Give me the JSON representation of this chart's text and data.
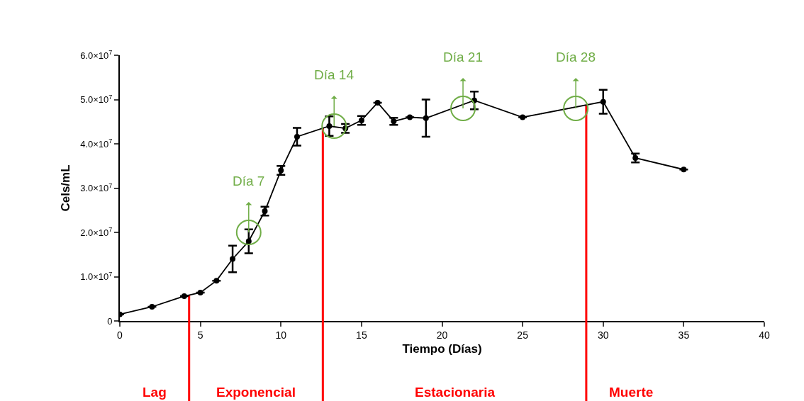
{
  "chart_data": {
    "type": "line",
    "xlabel": "Tiempo (Días)",
    "ylabel": "Cels/mL",
    "x": [
      0,
      2,
      4,
      5,
      6,
      7,
      8,
      9,
      10,
      11,
      13,
      14,
      15,
      16,
      17,
      18,
      19,
      22,
      25,
      30,
      32,
      35
    ],
    "series": [
      {
        "color": "#000000",
        "values": [
          1500000,
          3200000,
          5600000,
          6400000,
          9100000,
          14000000,
          18000000,
          24800000,
          34000000,
          41600000,
          44000000,
          43500000,
          45300000,
          49300000,
          45100000,
          46000000,
          45800000,
          49800000,
          46000000,
          49500000,
          36800000,
          34200000
        ],
        "errors": [
          null,
          null,
          null,
          null,
          null,
          3000000,
          2700000,
          1000000,
          1000000,
          2000000,
          2200000,
          1000000,
          1000000,
          null,
          800000,
          null,
          4200000,
          2000000,
          null,
          2700000,
          1000000,
          null
        ]
      }
    ],
    "marker": "circle",
    "line_style": "solid",
    "grid": false,
    "xlim": [
      0,
      40
    ],
    "xticks": [
      0,
      5,
      10,
      15,
      20,
      25,
      30,
      35,
      40
    ],
    "ylim": [
      0,
      60000000
    ],
    "yticks": [
      0,
      {
        "value": 10000000,
        "label": "1.0×10$^{7}$"
      },
      {
        "value": 20000000,
        "label": "2.0×10$^{7}$"
      },
      {
        "value": 30000000,
        "label": "3.0×10$^{7}$"
      },
      {
        "value": 40000000,
        "label": "4.0×10$^{7}$"
      },
      {
        "value": 50000000,
        "label": "5.0×10$^{7}$"
      },
      {
        "value": 60000000,
        "label": "6.0×10$^{7}$"
      }
    ],
    "ref_lines": [
      {
        "axis": "x",
        "value": 4.3,
        "color": "#ff0000"
      },
      {
        "axis": "x",
        "value": 12.6,
        "color": "#ff0000"
      },
      {
        "axis": "x",
        "value": 28.95,
        "color": "#ff0000"
      }
    ],
    "annotations": [
      {
        "text": "Día 7",
        "x": 8,
        "y": 20000000
      },
      {
        "text": "Día 14",
        "x": 13.3,
        "y": 44000000
      },
      {
        "text": "Día 21",
        "x": 21.3,
        "y": 48000000
      },
      {
        "text": "Día 28",
        "x": 28.3,
        "y": 48000000
      },
      "Lag",
      "Exponencial",
      "Estacionaria",
      "Muerte"
    ]
  }
}
